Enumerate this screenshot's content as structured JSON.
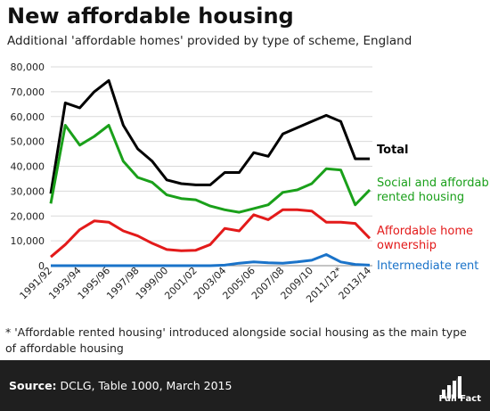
{
  "header": {
    "title": "New affordable housing",
    "subtitle": "Additional 'affordable homes' provided by type of scheme, England"
  },
  "footnote": "* 'Affordable rented housing' introduced alongside social housing as the main type of affordable housing",
  "footer": {
    "source_label": "Source:",
    "source_text": "DCLG, Table 1000, March 2015",
    "logo_text": "Full Fact"
  },
  "chart_data": {
    "type": "line",
    "x": [
      "1991/92",
      "1992/93",
      "1993/94",
      "1994/95",
      "1995/96",
      "1996/97",
      "1997/98",
      "1998/99",
      "1999/00",
      "2000/01",
      "2001/02",
      "2002/03",
      "2003/04",
      "2004/05",
      "2005/06",
      "2006/07",
      "2007/08",
      "2008/09",
      "2009/10",
      "2010/11",
      "2011/12*",
      "2012/13",
      "2013/14"
    ],
    "xtick_labels": [
      "1991/92",
      "1993/94",
      "1995/96",
      "1997/98",
      "1999/00",
      "2001/02",
      "2003/04",
      "2005/06",
      "2007/08",
      "2009/10",
      "2011/12*",
      "2013/14"
    ],
    "ylim": [
      0,
      80000
    ],
    "yticks": [
      0,
      10000,
      20000,
      30000,
      40000,
      50000,
      60000,
      70000,
      80000
    ],
    "ytick_labels": [
      "0",
      "10,000",
      "20,000",
      "30,000",
      "40,000",
      "50,000",
      "60,000",
      "70,000",
      "80,000"
    ],
    "grid": true,
    "series": [
      {
        "name": "Total",
        "color": "#000000",
        "values": [
          29000,
          65500,
          63500,
          70000,
          74500,
          56500,
          47000,
          42000,
          34500,
          33000,
          32500,
          32500,
          37500,
          37500,
          45500,
          44000,
          53000,
          55500,
          58000,
          60500,
          58000,
          43000,
          43000
        ]
      },
      {
        "name": "Social and affordable rented housing",
        "label_lines": [
          "Social and affordable",
          "rented housing"
        ],
        "color": "#1aa01a",
        "values": [
          25000,
          56500,
          48500,
          52000,
          56500,
          42000,
          35500,
          33500,
          28500,
          27000,
          26500,
          24000,
          22500,
          21500,
          23000,
          24500,
          29500,
          30500,
          33000,
          39000,
          38500,
          24500,
          30500
        ]
      },
      {
        "name": "Affordable home ownership",
        "label_lines": [
          "Affordable home",
          "ownership"
        ],
        "color": "#e31a1a",
        "values": [
          3500,
          8500,
          14500,
          18000,
          17500,
          14000,
          12000,
          9000,
          6500,
          6000,
          6200,
          8500,
          15000,
          14000,
          20500,
          18500,
          22500,
          22500,
          22000,
          17500,
          17500,
          17000,
          11000
        ]
      },
      {
        "name": "Intermediate rent",
        "color": "#1a73c9",
        "values": [
          0,
          0,
          0,
          0,
          0,
          0,
          0,
          0,
          0,
          0,
          0,
          0,
          200,
          1000,
          1500,
          1200,
          1000,
          1500,
          2200,
          4500,
          1500,
          500,
          200
        ]
      }
    ]
  }
}
